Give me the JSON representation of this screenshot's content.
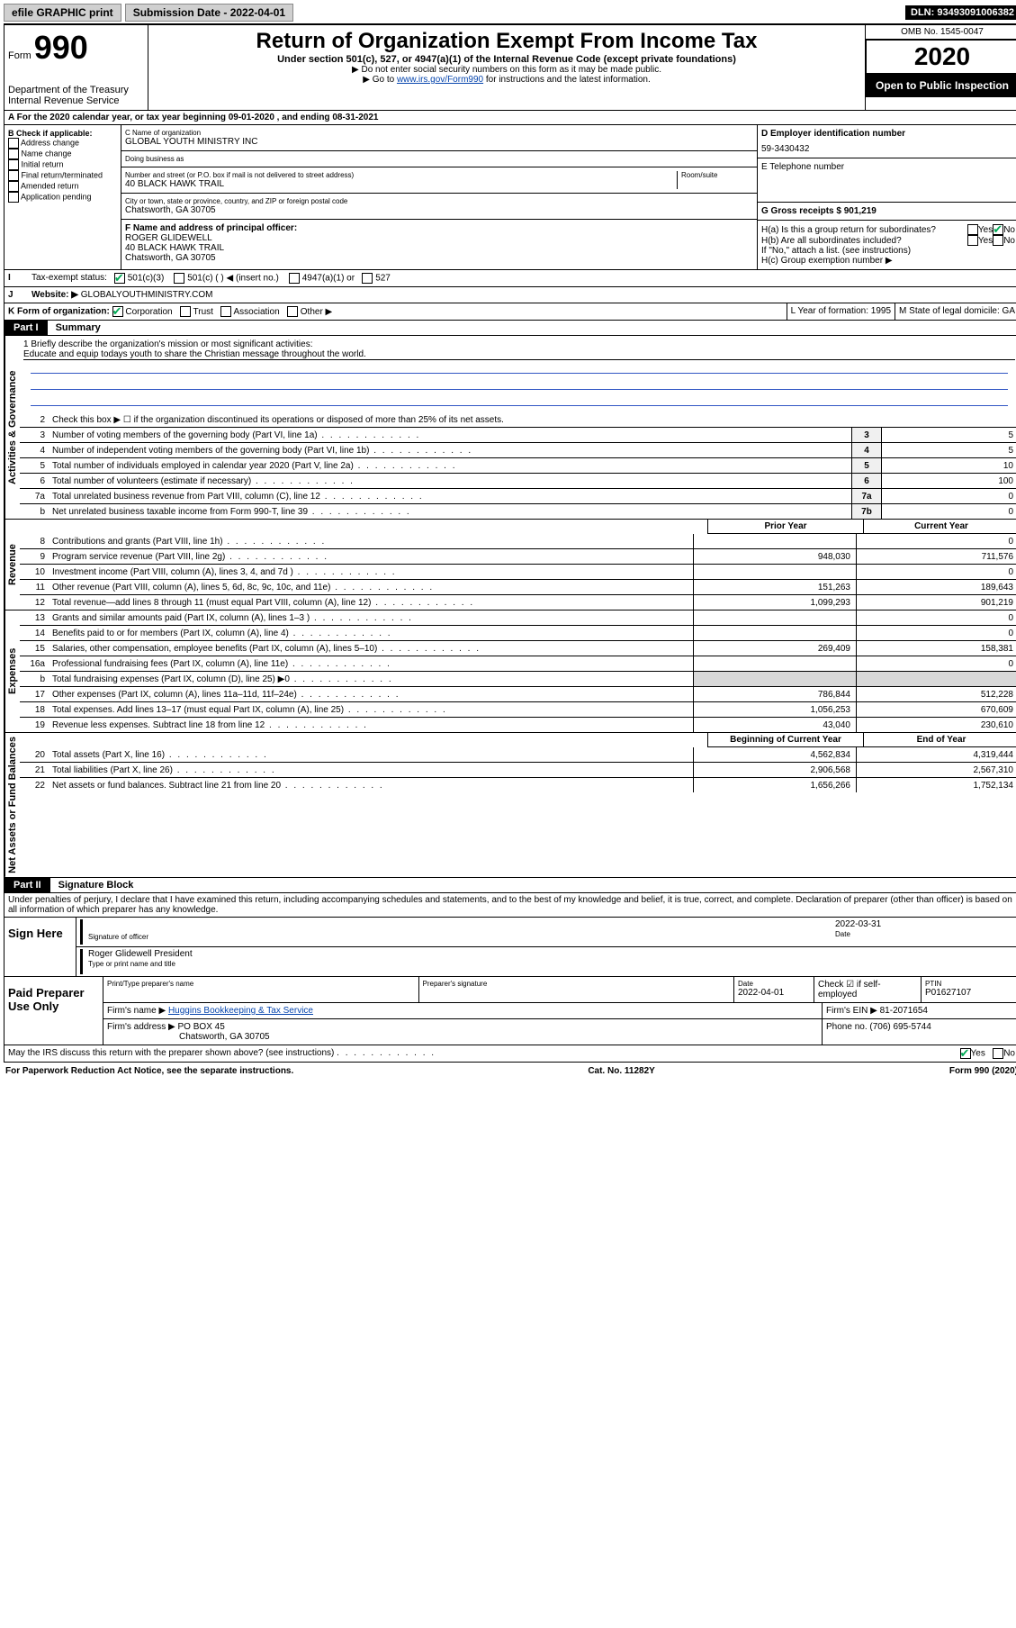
{
  "topbar": {
    "efile": "efile GRAPHIC print",
    "submission_label": "Submission Date - 2022-04-01",
    "dln": "DLN: 93493091006382"
  },
  "header": {
    "form_prefix": "Form",
    "form_number": "990",
    "dept": "Department of the Treasury",
    "irs": "Internal Revenue Service",
    "title": "Return of Organization Exempt From Income Tax",
    "subtitle": "Under section 501(c), 527, or 4947(a)(1) of the Internal Revenue Code (except private foundations)",
    "warn1": "▶ Do not enter social security numbers on this form as it may be made public.",
    "warn2_pre": "▶ Go to ",
    "warn2_link": "www.irs.gov/Form990",
    "warn2_post": " for instructions and the latest information.",
    "omb": "OMB No. 1545-0047",
    "year": "2020",
    "inspection": "Open to Public Inspection"
  },
  "row_a": "A For the 2020 calendar year, or tax year beginning 09-01-2020    , and ending 08-31-2021",
  "col_b": {
    "title": "B Check if applicable:",
    "opts": [
      "Address change",
      "Name change",
      "Initial return",
      "Final return/terminated",
      "Amended return",
      "Application pending"
    ]
  },
  "col_c": {
    "name_label": "C Name of organization",
    "name": "GLOBAL YOUTH MINISTRY INC",
    "dba_label": "Doing business as",
    "street_label": "Number and street (or P.O. box if mail is not delivered to street address)",
    "room_label": "Room/suite",
    "street": "40 BLACK HAWK TRAIL",
    "city_label": "City or town, state or province, country, and ZIP or foreign postal code",
    "city": "Chatsworth, GA  30705",
    "f_label": "F Name and address of principal officer:",
    "f_name": "ROGER GLIDEWELL",
    "f_addr1": "40 BLACK HAWK TRAIL",
    "f_addr2": "Chatsworth, GA  30705"
  },
  "col_d": {
    "ein_label": "D Employer identification number",
    "ein": "59-3430432",
    "phone_label": "E Telephone number",
    "gross_label": "G Gross receipts $ 901,219",
    "ha": "H(a)  Is this a group return for subordinates?",
    "hb": "H(b)  Are all subordinates included?",
    "hb_note": "If \"No,\" attach a list. (see instructions)",
    "hc": "H(c)  Group exemption number ▶",
    "yes": "Yes",
    "no": "No"
  },
  "row_i": {
    "label": "I",
    "text": "Tax-exempt status:",
    "opt1": "501(c)(3)",
    "opt2": "501(c) (  ) ◀ (insert no.)",
    "opt3": "4947(a)(1) or",
    "opt4": "527"
  },
  "row_j": {
    "label": "J",
    "text": "Website: ▶",
    "val": "GLOBALYOUTHMINISTRY.COM"
  },
  "row_k": {
    "label": "K Form of organization:",
    "opts": [
      "Corporation",
      "Trust",
      "Association",
      "Other ▶"
    ],
    "l_label": "L Year of formation: 1995",
    "m_label": "M State of legal domicile: GA"
  },
  "part1": {
    "header": "Part I",
    "title": "Summary",
    "labels": {
      "gov": "Activities & Governance",
      "rev": "Revenue",
      "exp": "Expenses",
      "net": "Net Assets or Fund Balances"
    },
    "l1_label": "1  Briefly describe the organization's mission or most significant activities:",
    "l1_text": "Educate and equip todays youth to share the Christian message throughout the world.",
    "l2": "Check this box ▶ ☐  if the organization discontinued its operations or disposed of more than 25% of its net assets.",
    "lines_single": [
      {
        "n": "3",
        "d": "Number of voting members of the governing body (Part VI, line 1a)",
        "b": "3",
        "v": "5"
      },
      {
        "n": "4",
        "d": "Number of independent voting members of the governing body (Part VI, line 1b)",
        "b": "4",
        "v": "5"
      },
      {
        "n": "5",
        "d": "Total number of individuals employed in calendar year 2020 (Part V, line 2a)",
        "b": "5",
        "v": "10"
      },
      {
        "n": "6",
        "d": "Total number of volunteers (estimate if necessary)",
        "b": "6",
        "v": "100"
      },
      {
        "n": "7a",
        "d": "Total unrelated business revenue from Part VIII, column (C), line 12",
        "b": "7a",
        "v": "0"
      },
      {
        "n": "b",
        "d": "Net unrelated business taxable income from Form 990-T, line 39",
        "b": "7b",
        "v": "0"
      }
    ],
    "col_headers": {
      "prior": "Prior Year",
      "current": "Current Year",
      "beg": "Beginning of Current Year",
      "end": "End of Year"
    },
    "revenue": [
      {
        "n": "8",
        "d": "Contributions and grants (Part VIII, line 1h)",
        "p": "",
        "c": "0"
      },
      {
        "n": "9",
        "d": "Program service revenue (Part VIII, line 2g)",
        "p": "948,030",
        "c": "711,576"
      },
      {
        "n": "10",
        "d": "Investment income (Part VIII, column (A), lines 3, 4, and 7d )",
        "p": "",
        "c": "0"
      },
      {
        "n": "11",
        "d": "Other revenue (Part VIII, column (A), lines 5, 6d, 8c, 9c, 10c, and 11e)",
        "p": "151,263",
        "c": "189,643"
      },
      {
        "n": "12",
        "d": "Total revenue—add lines 8 through 11 (must equal Part VIII, column (A), line 12)",
        "p": "1,099,293",
        "c": "901,219"
      }
    ],
    "expenses": [
      {
        "n": "13",
        "d": "Grants and similar amounts paid (Part IX, column (A), lines 1–3 )",
        "p": "",
        "c": "0"
      },
      {
        "n": "14",
        "d": "Benefits paid to or for members (Part IX, column (A), line 4)",
        "p": "",
        "c": "0"
      },
      {
        "n": "15",
        "d": "Salaries, other compensation, employee benefits (Part IX, column (A), lines 5–10)",
        "p": "269,409",
        "c": "158,381"
      },
      {
        "n": "16a",
        "d": "Professional fundraising fees (Part IX, column (A), line 11e)",
        "p": "",
        "c": "0"
      },
      {
        "n": "b",
        "d": "Total fundraising expenses (Part IX, column (D), line 25) ▶0",
        "p": "shade",
        "c": "shade"
      },
      {
        "n": "17",
        "d": "Other expenses (Part IX, column (A), lines 11a–11d, 11f–24e)",
        "p": "786,844",
        "c": "512,228"
      },
      {
        "n": "18",
        "d": "Total expenses. Add lines 13–17 (must equal Part IX, column (A), line 25)",
        "p": "1,056,253",
        "c": "670,609"
      },
      {
        "n": "19",
        "d": "Revenue less expenses. Subtract line 18 from line 12",
        "p": "43,040",
        "c": "230,610"
      }
    ],
    "net": [
      {
        "n": "20",
        "d": "Total assets (Part X, line 16)",
        "p": "4,562,834",
        "c": "4,319,444"
      },
      {
        "n": "21",
        "d": "Total liabilities (Part X, line 26)",
        "p": "2,906,568",
        "c": "2,567,310"
      },
      {
        "n": "22",
        "d": "Net assets or fund balances. Subtract line 21 from line 20",
        "p": "1,656,266",
        "c": "1,752,134"
      }
    ]
  },
  "part2": {
    "header": "Part II",
    "title": "Signature Block",
    "perjury": "Under penalties of perjury, I declare that I have examined this return, including accompanying schedules and statements, and to the best of my knowledge and belief, it is true, correct, and complete. Declaration of preparer (other than officer) is based on all information of which preparer has any knowledge.",
    "sign_here": "Sign Here",
    "sig_of_officer": "Signature of officer",
    "sig_date": "2022-03-31",
    "date_label": "Date",
    "officer_name": "Roger Glidewell President",
    "type_label": "Type or print name and title",
    "paid_prep": "Paid Preparer Use Only",
    "prep_name_label": "Print/Type preparer's name",
    "prep_sig_label": "Preparer's signature",
    "prep_date_label": "Date",
    "prep_date": "2022-04-01",
    "self_emp": "Check ☑ if self-employed",
    "ptin_label": "PTIN",
    "ptin": "P01627107",
    "firm_name_label": "Firm's name    ▶",
    "firm_name": "Huggins Bookkeeping & Tax Service",
    "firm_ein_label": "Firm's EIN ▶",
    "firm_ein": "81-2071654",
    "firm_addr_label": "Firm's address ▶",
    "firm_addr1": "PO BOX 45",
    "firm_addr2": "Chatsworth, GA  30705",
    "phone_label": "Phone no. (706) 695-5744",
    "discuss": "May the IRS discuss this return with the preparer shown above? (see instructions)"
  },
  "footer": {
    "left": "For Paperwork Reduction Act Notice, see the separate instructions.",
    "mid": "Cat. No. 11282Y",
    "right": "Form 990 (2020)"
  }
}
